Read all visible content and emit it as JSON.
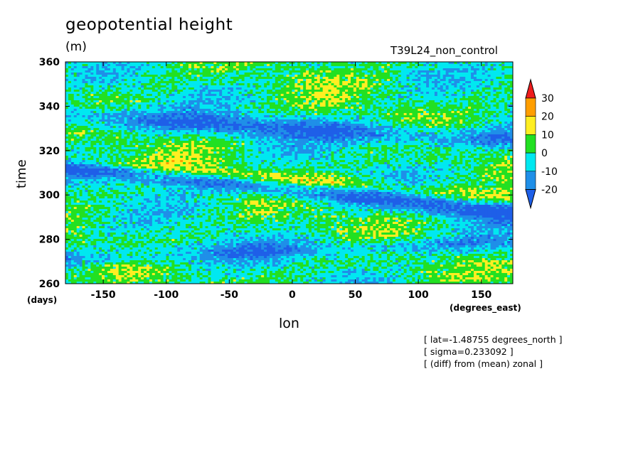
{
  "chart_data": {
    "type": "heatmap",
    "title": "geopotential height",
    "units": "(m)",
    "run_name": "T39L24_non_control",
    "xlabel": "lon",
    "xunit": "(degrees_east)",
    "ylabel": "time",
    "yunit": "(days)",
    "xlim": [
      -180,
      175
    ],
    "ylim": [
      260,
      360
    ],
    "x_ticks": [
      -150,
      -100,
      -50,
      0,
      50,
      100,
      150
    ],
    "y_ticks": [
      260,
      280,
      300,
      320,
      340,
      360
    ],
    "colorbar": {
      "levels": [
        30,
        20,
        10,
        0,
        -10,
        -20
      ],
      "colors": [
        "#ee1c1c",
        "#ff9e00",
        "#ffee22",
        "#22e022",
        "#00e8f0",
        "#1f8fe8",
        "#1e5fe8"
      ]
    },
    "annotations": [
      "[ lat=-1.48755 degrees_north ]",
      "[ sigma=0.233092 ]",
      "[ (diff) from (mean) zonal ]"
    ]
  }
}
